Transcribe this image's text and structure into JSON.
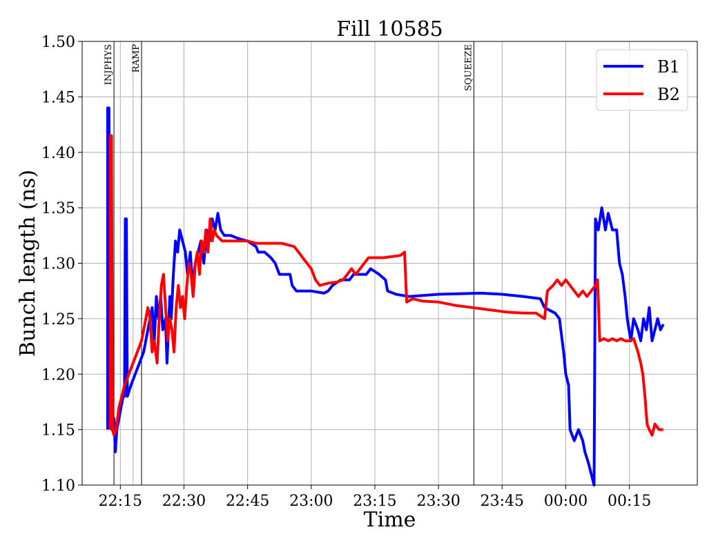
{
  "chart_data": {
    "type": "line",
    "title": "Fill 10585",
    "xlabel": "Time",
    "ylabel": "Bunch length (ns)",
    "ylim": [
      1.1,
      1.5
    ],
    "xlim": [
      "22:06",
      "00:31"
    ],
    "yticks": [
      "1.10",
      "1.15",
      "1.20",
      "1.25",
      "1.30",
      "1.35",
      "1.40",
      "1.45",
      "1.50"
    ],
    "xticks": [
      {
        "time": "22:15",
        "label": "22:15"
      },
      {
        "time": "22:30",
        "label": "22:30"
      },
      {
        "time": "22:45",
        "label": "22:45"
      },
      {
        "time": "23:00",
        "label": "23:00"
      },
      {
        "time": "23:15",
        "label": "23:15"
      },
      {
        "time": "23:30",
        "label": "23:30"
      },
      {
        "time": "23:45",
        "label": "23:45"
      },
      {
        "time": "00:00",
        "label": "00:00"
      },
      {
        "time": "00:15",
        "label": "00:15"
      }
    ],
    "grid": true,
    "legend": "top-right",
    "annotations": [
      {
        "text": "INJPHYS",
        "time": "22:13:30"
      },
      {
        "text": "RAMP",
        "time": "22:20:00"
      },
      {
        "text": "SQUEEZE",
        "time": "23:38:20"
      }
    ],
    "extra_vlines": [
      "22:18:00"
    ],
    "series": [
      {
        "name": "B1",
        "color": "#0000ff",
        "points": [
          [
            "22:12:00",
            1.15
          ],
          [
            "22:12:00",
            1.44
          ],
          [
            "22:12:20",
            1.44
          ],
          [
            "22:12:30",
            1.16
          ],
          [
            "22:13:00",
            1.15
          ],
          [
            "22:13:30",
            1.16
          ],
          [
            "22:13:50",
            1.13
          ],
          [
            "22:14:10",
            1.15
          ],
          [
            "22:14:40",
            1.16
          ],
          [
            "22:15:10",
            1.17
          ],
          [
            "22:15:40",
            1.18
          ],
          [
            "22:16:00",
            1.18
          ],
          [
            "22:16:10",
            1.34
          ],
          [
            "22:16:25",
            1.34
          ],
          [
            "22:16:40",
            1.18
          ],
          [
            "22:17:30",
            1.19
          ],
          [
            "22:18:30",
            1.2
          ],
          [
            "22:19:30",
            1.21
          ],
          [
            "22:20:30",
            1.22
          ],
          [
            "22:21:30",
            1.24
          ],
          [
            "22:22:30",
            1.26
          ],
          [
            "22:23:00",
            1.23
          ],
          [
            "22:23:30",
            1.27
          ],
          [
            "22:24:00",
            1.25
          ],
          [
            "22:24:30",
            1.27
          ],
          [
            "22:25:00",
            1.24
          ],
          [
            "22:25:40",
            1.25
          ],
          [
            "22:26:00",
            1.21
          ],
          [
            "22:26:40",
            1.27
          ],
          [
            "22:27:00",
            1.25
          ],
          [
            "22:27:30",
            1.29
          ],
          [
            "22:28:00",
            1.32
          ],
          [
            "22:28:30",
            1.31
          ],
          [
            "22:29:00",
            1.33
          ],
          [
            "22:29:40",
            1.32
          ],
          [
            "22:30:20",
            1.31
          ],
          [
            "22:30:50",
            1.29
          ],
          [
            "22:31:30",
            1.31
          ],
          [
            "22:32:00",
            1.28
          ],
          [
            "22:32:40",
            1.3
          ],
          [
            "22:33:20",
            1.31
          ],
          [
            "22:34:00",
            1.32
          ],
          [
            "22:34:40",
            1.3
          ],
          [
            "22:35:20",
            1.33
          ],
          [
            "22:36:00",
            1.32
          ],
          [
            "22:36:40",
            1.34
          ],
          [
            "22:37:20",
            1.33
          ],
          [
            "22:38:00",
            1.345
          ],
          [
            "22:38:40",
            1.33
          ],
          [
            "22:39:30",
            1.325
          ],
          [
            "22:41:00",
            1.325
          ],
          [
            "22:43:00",
            1.322
          ],
          [
            "22:45:00",
            1.32
          ],
          [
            "22:47:00",
            1.315
          ],
          [
            "22:47:30",
            1.31
          ],
          [
            "22:49:00",
            1.31
          ],
          [
            "22:50:30",
            1.305
          ],
          [
            "22:51:30",
            1.3
          ],
          [
            "22:52:30",
            1.29
          ],
          [
            "22:54:00",
            1.29
          ],
          [
            "22:55:00",
            1.29
          ],
          [
            "22:55:30",
            1.28
          ],
          [
            "22:56:30",
            1.275
          ],
          [
            "23:00:00",
            1.275
          ],
          [
            "23:03:00",
            1.273
          ],
          [
            "23:04:00",
            1.275
          ],
          [
            "23:05:00",
            1.28
          ],
          [
            "23:07:00",
            1.285
          ],
          [
            "23:09:00",
            1.285
          ],
          [
            "23:10:00",
            1.29
          ],
          [
            "23:13:00",
            1.29
          ],
          [
            "23:14:00",
            1.295
          ],
          [
            "23:16:00",
            1.29
          ],
          [
            "23:17:30",
            1.285
          ],
          [
            "23:18:00",
            1.275
          ],
          [
            "23:20:00",
            1.272
          ],
          [
            "23:23:00",
            1.27
          ],
          [
            "23:30:00",
            1.272
          ],
          [
            "23:40:00",
            1.273
          ],
          [
            "23:45:00",
            1.272
          ],
          [
            "23:50:00",
            1.27
          ],
          [
            "23:54:00",
            1.268
          ],
          [
            "23:55:00",
            1.26
          ],
          [
            "23:57:30",
            1.255
          ],
          [
            "23:58:30",
            1.25
          ],
          [
            "23:59:30",
            1.22
          ],
          [
            "00:00:00",
            1.2
          ],
          [
            "00:00:40",
            1.19
          ],
          [
            "00:01:00",
            1.15
          ],
          [
            "00:02:00",
            1.14
          ],
          [
            "00:03:00",
            1.15
          ],
          [
            "00:04:00",
            1.14
          ],
          [
            "00:04:30",
            1.13
          ],
          [
            "00:05:20",
            1.12
          ],
          [
            "00:06:00",
            1.11
          ],
          [
            "00:06:40",
            1.1
          ],
          [
            "00:07:00",
            1.34
          ],
          [
            "00:07:40",
            1.33
          ],
          [
            "00:08:30",
            1.35
          ],
          [
            "00:09:20",
            1.33
          ],
          [
            "00:10:00",
            1.345
          ],
          [
            "00:11:00",
            1.33
          ],
          [
            "00:12:00",
            1.33
          ],
          [
            "00:12:40",
            1.3
          ],
          [
            "00:13:20",
            1.29
          ],
          [
            "00:14:00",
            1.27
          ],
          [
            "00:14:30",
            1.25
          ],
          [
            "00:15:20",
            1.23
          ],
          [
            "00:16:00",
            1.25
          ],
          [
            "00:17:00",
            1.24
          ],
          [
            "00:17:40",
            1.23
          ],
          [
            "00:18:20",
            1.25
          ],
          [
            "00:19:00",
            1.24
          ],
          [
            "00:19:40",
            1.26
          ],
          [
            "00:20:20",
            1.23
          ],
          [
            "00:21:00",
            1.24
          ],
          [
            "00:21:40",
            1.25
          ],
          [
            "00:22:20",
            1.24
          ],
          [
            "00:23:00",
            1.245
          ]
        ]
      },
      {
        "name": "B2",
        "color": "#ff0000",
        "points": [
          [
            "22:12:40",
            1.15
          ],
          [
            "22:12:40",
            1.415
          ],
          [
            "22:12:55",
            1.415
          ],
          [
            "22:13:10",
            1.15
          ],
          [
            "22:13:30",
            1.145
          ],
          [
            "22:14:00",
            1.15
          ],
          [
            "22:14:40",
            1.17
          ],
          [
            "22:15:20",
            1.18
          ],
          [
            "22:16:00",
            1.19
          ],
          [
            "22:17:00",
            1.2
          ],
          [
            "22:18:00",
            1.21
          ],
          [
            "22:19:00",
            1.22
          ],
          [
            "22:20:00",
            1.23
          ],
          [
            "22:21:00",
            1.25
          ],
          [
            "22:21:30",
            1.26
          ],
          [
            "22:22:00",
            1.25
          ],
          [
            "22:22:30",
            1.22
          ],
          [
            "22:23:00",
            1.23
          ],
          [
            "22:23:40",
            1.21
          ],
          [
            "22:24:10",
            1.25
          ],
          [
            "22:24:40",
            1.28
          ],
          [
            "22:25:10",
            1.29
          ],
          [
            "22:25:40",
            1.26
          ],
          [
            "22:26:10",
            1.23
          ],
          [
            "22:26:40",
            1.25
          ],
          [
            "22:27:10",
            1.24
          ],
          [
            "22:27:40",
            1.22
          ],
          [
            "22:28:10",
            1.26
          ],
          [
            "22:28:40",
            1.28
          ],
          [
            "22:29:10",
            1.26
          ],
          [
            "22:29:40",
            1.27
          ],
          [
            "22:30:10",
            1.25
          ],
          [
            "22:30:40",
            1.28
          ],
          [
            "22:31:10",
            1.3
          ],
          [
            "22:31:40",
            1.29
          ],
          [
            "22:32:10",
            1.27
          ],
          [
            "22:32:40",
            1.3
          ],
          [
            "22:33:10",
            1.31
          ],
          [
            "22:33:40",
            1.29
          ],
          [
            "22:34:10",
            1.32
          ],
          [
            "22:34:40",
            1.31
          ],
          [
            "22:35:10",
            1.33
          ],
          [
            "22:35:40",
            1.31
          ],
          [
            "22:36:10",
            1.34
          ],
          [
            "22:36:40",
            1.32
          ],
          [
            "22:37:10",
            1.33
          ],
          [
            "22:37:40",
            1.325
          ],
          [
            "22:39:00",
            1.32
          ],
          [
            "22:41:00",
            1.32
          ],
          [
            "22:43:00",
            1.32
          ],
          [
            "22:45:00",
            1.32
          ],
          [
            "22:47:00",
            1.318
          ],
          [
            "22:50:00",
            1.318
          ],
          [
            "22:53:00",
            1.318
          ],
          [
            "22:56:00",
            1.315
          ],
          [
            "22:57:00",
            1.31
          ],
          [
            "22:58:00",
            1.305
          ],
          [
            "22:59:00",
            1.3
          ],
          [
            "23:00:00",
            1.295
          ],
          [
            "23:01:00",
            1.285
          ],
          [
            "23:02:00",
            1.28
          ],
          [
            "23:04:00",
            1.282
          ],
          [
            "23:06:00",
            1.283
          ],
          [
            "23:07:30",
            1.285
          ],
          [
            "23:08:30",
            1.29
          ],
          [
            "23:09:30",
            1.295
          ],
          [
            "23:10:30",
            1.29
          ],
          [
            "23:11:30",
            1.295
          ],
          [
            "23:12:30",
            1.3
          ],
          [
            "23:13:30",
            1.305
          ],
          [
            "23:15:00",
            1.305
          ],
          [
            "23:17:00",
            1.305
          ],
          [
            "23:19:00",
            1.306
          ],
          [
            "23:21:00",
            1.307
          ],
          [
            "23:22:00",
            1.31
          ],
          [
            "23:22:30",
            1.265
          ],
          [
            "23:24:00",
            1.268
          ],
          [
            "23:26:00",
            1.266
          ],
          [
            "23:30:00",
            1.265
          ],
          [
            "23:34:00",
            1.262
          ],
          [
            "23:38:00",
            1.26
          ],
          [
            "23:42:00",
            1.258
          ],
          [
            "23:46:00",
            1.256
          ],
          [
            "23:50:00",
            1.255
          ],
          [
            "23:53:00",
            1.255
          ],
          [
            "23:55:00",
            1.25
          ],
          [
            "23:55:40",
            1.275
          ],
          [
            "23:57:00",
            1.28
          ],
          [
            "23:58:00",
            1.285
          ],
          [
            "23:59:00",
            1.28
          ],
          [
            "00:00:00",
            1.285
          ],
          [
            "00:01:00",
            1.28
          ],
          [
            "00:02:00",
            1.275
          ],
          [
            "00:03:00",
            1.27
          ],
          [
            "00:04:00",
            1.275
          ],
          [
            "00:05:00",
            1.27
          ],
          [
            "00:06:00",
            1.275
          ],
          [
            "00:07:00",
            1.28
          ],
          [
            "00:07:30",
            1.285
          ],
          [
            "00:08:00",
            1.23
          ],
          [
            "00:09:00",
            1.232
          ],
          [
            "00:10:00",
            1.23
          ],
          [
            "00:11:00",
            1.232
          ],
          [
            "00:12:00",
            1.23
          ],
          [
            "00:13:00",
            1.232
          ],
          [
            "00:14:00",
            1.23
          ],
          [
            "00:15:00",
            1.23
          ],
          [
            "00:16:00",
            1.232
          ],
          [
            "00:17:00",
            1.22
          ],
          [
            "00:17:40",
            1.21
          ],
          [
            "00:18:10",
            1.2
          ],
          [
            "00:18:40",
            1.18
          ],
          [
            "00:19:10",
            1.155
          ],
          [
            "00:19:40",
            1.15
          ],
          [
            "00:20:20",
            1.145
          ],
          [
            "00:21:00",
            1.155
          ],
          [
            "00:22:00",
            1.15
          ],
          [
            "00:23:00",
            1.15
          ]
        ]
      }
    ]
  }
}
